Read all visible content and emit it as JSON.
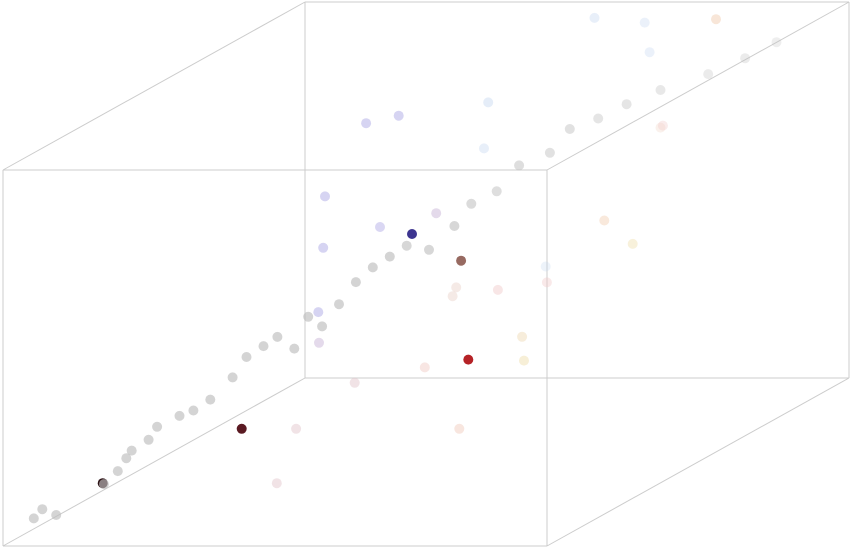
{
  "chart_data": {
    "type": "scatter",
    "title": "",
    "grid": false,
    "legend": false,
    "xlim": [
      0,
      1
    ],
    "ylim": [
      0,
      1
    ],
    "zlim": [
      0,
      1
    ],
    "frame_color": "#cccccc",
    "points": [
      {
        "x": 0.04,
        "y": 0.03,
        "z": 0.06,
        "color": "#bdbdbd",
        "opacity": 0.65
      },
      {
        "x": 0.05,
        "y": 0.04,
        "z": 0.08,
        "color": "#bdbdbd",
        "opacity": 0.65
      },
      {
        "x": 0.07,
        "y": 0.05,
        "z": 0.06,
        "color": "#bdbdbd",
        "opacity": 0.65
      },
      {
        "x": 0.13,
        "y": 0.1,
        "z": 0.12,
        "color": "#bdbdbd",
        "opacity": 0.65
      },
      {
        "x": 0.15,
        "y": 0.11,
        "z": 0.15,
        "color": "#bdbdbd",
        "opacity": 0.65
      },
      {
        "x": 0.16,
        "y": 0.12,
        "z": 0.18,
        "color": "#bdbdbd",
        "opacity": 0.65
      },
      {
        "x": 0.17,
        "y": 0.12,
        "z": 0.2,
        "color": "#bdbdbd",
        "opacity": 0.65
      },
      {
        "x": 0.19,
        "y": 0.14,
        "z": 0.22,
        "color": "#bdbdbd",
        "opacity": 0.65
      },
      {
        "x": 0.2,
        "y": 0.15,
        "z": 0.25,
        "color": "#bdbdbd",
        "opacity": 0.65
      },
      {
        "x": 0.23,
        "y": 0.17,
        "z": 0.27,
        "color": "#bdbdbd",
        "opacity": 0.65
      },
      {
        "x": 0.25,
        "y": 0.18,
        "z": 0.28,
        "color": "#bdbdbd",
        "opacity": 0.65
      },
      {
        "x": 0.27,
        "y": 0.2,
        "z": 0.3,
        "color": "#bdbdbd",
        "opacity": 0.65
      },
      {
        "x": 0.3,
        "y": 0.22,
        "z": 0.35,
        "color": "#bdbdbd",
        "opacity": 0.65
      },
      {
        "x": 0.32,
        "y": 0.23,
        "z": 0.4,
        "color": "#bdbdbd",
        "opacity": 0.65
      },
      {
        "x": 0.34,
        "y": 0.25,
        "z": 0.42,
        "color": "#bdbdbd",
        "opacity": 0.65
      },
      {
        "x": 0.36,
        "y": 0.26,
        "z": 0.44,
        "color": "#bdbdbd",
        "opacity": 0.65
      },
      {
        "x": 0.38,
        "y": 0.28,
        "z": 0.4,
        "color": "#bdbdbd",
        "opacity": 0.65
      },
      {
        "x": 0.4,
        "y": 0.29,
        "z": 0.48,
        "color": "#bdbdbd",
        "opacity": 0.65
      },
      {
        "x": 0.42,
        "y": 0.3,
        "z": 0.45,
        "color": "#bdbdbd",
        "opacity": 0.65
      },
      {
        "x": 0.44,
        "y": 0.32,
        "z": 0.5,
        "color": "#bdbdbd",
        "opacity": 0.65
      },
      {
        "x": 0.46,
        "y": 0.34,
        "z": 0.55,
        "color": "#bdbdbd",
        "opacity": 0.65
      },
      {
        "x": 0.48,
        "y": 0.36,
        "z": 0.58,
        "color": "#bdbdbd",
        "opacity": 0.65
      },
      {
        "x": 0.5,
        "y": 0.38,
        "z": 0.6,
        "color": "#bdbdbd",
        "opacity": 0.65
      },
      {
        "x": 0.52,
        "y": 0.4,
        "z": 0.62,
        "color": "#bdbdbd",
        "opacity": 0.6
      },
      {
        "x": 0.55,
        "y": 0.42,
        "z": 0.6,
        "color": "#bdbdbd",
        "opacity": 0.6
      },
      {
        "x": 0.58,
        "y": 0.45,
        "z": 0.65,
        "color": "#bdbdbd",
        "opacity": 0.6
      },
      {
        "x": 0.6,
        "y": 0.47,
        "z": 0.7,
        "color": "#bdbdbd",
        "opacity": 0.55
      },
      {
        "x": 0.63,
        "y": 0.5,
        "z": 0.72,
        "color": "#bdbdbd",
        "opacity": 0.5
      },
      {
        "x": 0.66,
        "y": 0.52,
        "z": 0.78,
        "color": "#bdbdbd",
        "opacity": 0.5
      },
      {
        "x": 0.7,
        "y": 0.55,
        "z": 0.8,
        "color": "#bdbdbd",
        "opacity": 0.45
      },
      {
        "x": 0.72,
        "y": 0.58,
        "z": 0.85,
        "color": "#bdbdbd",
        "opacity": 0.45
      },
      {
        "x": 0.75,
        "y": 0.62,
        "z": 0.86,
        "color": "#bdbdbd",
        "opacity": 0.4
      },
      {
        "x": 0.78,
        "y": 0.66,
        "z": 0.88,
        "color": "#bdbdbd",
        "opacity": 0.4
      },
      {
        "x": 0.82,
        "y": 0.7,
        "z": 0.9,
        "color": "#bdbdbd",
        "opacity": 0.35
      },
      {
        "x": 0.88,
        "y": 0.75,
        "z": 0.92,
        "color": "#bdbdbd",
        "opacity": 0.3
      },
      {
        "x": 0.92,
        "y": 0.8,
        "z": 0.94,
        "color": "#bdbdbd",
        "opacity": 0.3
      },
      {
        "x": 0.95,
        "y": 0.85,
        "z": 0.96,
        "color": "#bdbdbd",
        "opacity": 0.25
      },
      {
        "x": 0.1,
        "y": 0.15,
        "z": 0.1,
        "color": "#2b1114",
        "opacity": 1.0
      },
      {
        "x": 0.3,
        "y": 0.25,
        "z": 0.2,
        "color": "#5a1a22",
        "opacity": 1.0
      },
      {
        "x": 0.55,
        "y": 0.55,
        "z": 0.25,
        "color": "#b52226",
        "opacity": 1.0
      },
      {
        "x": 0.62,
        "y": 0.4,
        "z": 0.58,
        "color": "#8c5a50",
        "opacity": 0.9
      },
      {
        "x": 0.28,
        "y": 0.85,
        "z": 0.45,
        "color": "#3d3590",
        "opacity": 1.0
      },
      {
        "x": 0.08,
        "y": 0.9,
        "z": 0.22,
        "color": "#b5b0e8",
        "opacity": 0.55
      },
      {
        "x": 0.1,
        "y": 0.88,
        "z": 0.4,
        "color": "#b5b0e8",
        "opacity": 0.55
      },
      {
        "x": 0.12,
        "y": 0.85,
        "z": 0.55,
        "color": "#b5b0e8",
        "opacity": 0.55
      },
      {
        "x": 0.14,
        "y": 0.95,
        "z": 0.7,
        "color": "#b5b0e8",
        "opacity": 0.55
      },
      {
        "x": 0.2,
        "y": 0.95,
        "z": 0.72,
        "color": "#b5b0e8",
        "opacity": 0.55
      },
      {
        "x": 0.26,
        "y": 0.78,
        "z": 0.5,
        "color": "#b5b0e8",
        "opacity": 0.5
      },
      {
        "x": 0.38,
        "y": 0.75,
        "z": 0.55,
        "color": "#c9b5d8",
        "opacity": 0.5
      },
      {
        "x": 0.22,
        "y": 0.65,
        "z": 0.25,
        "color": "#c9b5d8",
        "opacity": 0.5
      },
      {
        "x": 0.42,
        "y": 0.85,
        "z": 0.8,
        "color": "#c5d8f0",
        "opacity": 0.45
      },
      {
        "x": 0.44,
        "y": 0.8,
        "z": 0.7,
        "color": "#c5d8f0",
        "opacity": 0.4
      },
      {
        "x": 0.56,
        "y": 0.95,
        "z": 0.98,
        "color": "#c5d8f0",
        "opacity": 0.4
      },
      {
        "x": 0.68,
        "y": 0.9,
        "z": 0.99,
        "color": "#c5d8f0",
        "opacity": 0.35
      },
      {
        "x": 0.7,
        "y": 0.88,
        "z": 0.92,
        "color": "#c5d8f0",
        "opacity": 0.35
      },
      {
        "x": 0.72,
        "y": 0.5,
        "z": 0.52,
        "color": "#c5d8f0",
        "opacity": 0.3
      },
      {
        "x": 0.8,
        "y": 0.92,
        "z": 0.99,
        "color": "#f0c8a8",
        "opacity": 0.45
      },
      {
        "x": 0.82,
        "y": 0.7,
        "z": 0.8,
        "color": "#f0d8c8",
        "opacity": 0.35
      },
      {
        "x": 0.88,
        "y": 0.6,
        "z": 0.85,
        "color": "#f0c8c8",
        "opacity": 0.35
      },
      {
        "x": 0.8,
        "y": 0.55,
        "z": 0.62,
        "color": "#f0c8a8",
        "opacity": 0.4
      },
      {
        "x": 0.75,
        "y": 0.45,
        "z": 0.5,
        "color": "#f0c8c8",
        "opacity": 0.4
      },
      {
        "x": 0.88,
        "y": 0.5,
        "z": 0.58,
        "color": "#f0e0b0",
        "opacity": 0.45
      },
      {
        "x": 0.76,
        "y": 0.35,
        "z": 0.4,
        "color": "#f0dcb8",
        "opacity": 0.5
      },
      {
        "x": 0.78,
        "y": 0.32,
        "z": 0.35,
        "color": "#f0e0b0",
        "opacity": 0.5
      },
      {
        "x": 0.7,
        "y": 0.25,
        "z": 0.2,
        "color": "#f0c8b8",
        "opacity": 0.45
      },
      {
        "x": 0.62,
        "y": 0.28,
        "z": 0.35,
        "color": "#f0c8c0",
        "opacity": 0.45
      },
      {
        "x": 0.48,
        "y": 0.3,
        "z": 0.3,
        "color": "#e0c0c8",
        "opacity": 0.45
      },
      {
        "x": 0.4,
        "y": 0.25,
        "z": 0.2,
        "color": "#e0c0c8",
        "opacity": 0.45
      },
      {
        "x": 0.42,
        "y": 0.15,
        "z": 0.1,
        "color": "#e0c0c8",
        "opacity": 0.45
      },
      {
        "x": 0.56,
        "y": 0.48,
        "z": 0.45,
        "color": "#e8d0c8",
        "opacity": 0.45
      },
      {
        "x": 0.6,
        "y": 0.42,
        "z": 0.5,
        "color": "#e8d0c8",
        "opacity": 0.45
      },
      {
        "x": 0.66,
        "y": 0.45,
        "z": 0.48,
        "color": "#f0c8c8",
        "opacity": 0.45
      }
    ]
  }
}
